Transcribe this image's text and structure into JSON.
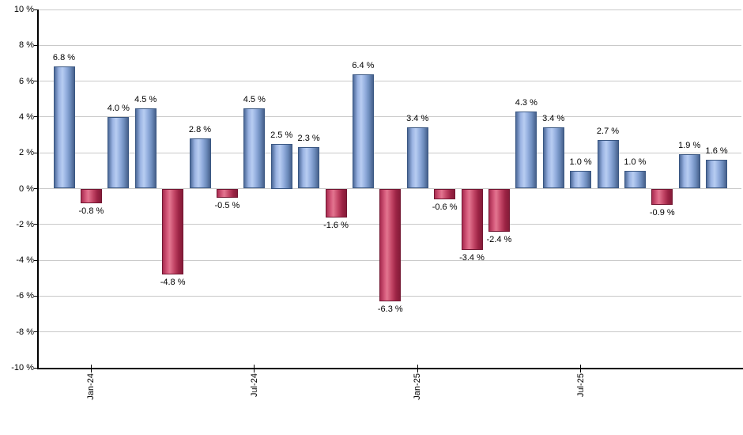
{
  "chart_data": {
    "type": "bar",
    "title": "",
    "unit": "%",
    "bars": [
      {
        "value": 6.8,
        "label": "6.8 %"
      },
      {
        "value": -0.8,
        "label": "-0.8 %"
      },
      {
        "value": 4.0,
        "label": "4.0 %"
      },
      {
        "value": 4.5,
        "label": "4.5 %"
      },
      {
        "value": -4.8,
        "label": "-4.8 %"
      },
      {
        "value": 2.8,
        "label": "2.8 %"
      },
      {
        "value": -0.5,
        "label": "-0.5 %"
      },
      {
        "value": 4.5,
        "label": "4.5 %"
      },
      {
        "value": 2.5,
        "label": "2.5 %"
      },
      {
        "value": 2.3,
        "label": "2.3 %"
      },
      {
        "value": -1.6,
        "label": "-1.6 %"
      },
      {
        "value": 6.4,
        "label": "6.4 %"
      },
      {
        "value": -6.3,
        "label": "-6.3 %"
      },
      {
        "value": 3.4,
        "label": "3.4 %"
      },
      {
        "value": -0.6,
        "label": "-0.6 %"
      },
      {
        "value": -3.4,
        "label": "-3.4 %"
      },
      {
        "value": -2.4,
        "label": "-2.4 %"
      },
      {
        "value": 4.3,
        "label": "4.3 %"
      },
      {
        "value": 3.4,
        "label": "3.4 %"
      },
      {
        "value": 1.0,
        "label": "1.0 %"
      },
      {
        "value": 2.7,
        "label": "2.7 %"
      },
      {
        "value": 1.0,
        "label": "1.0 %"
      },
      {
        "value": -0.9,
        "label": "-0.9 %"
      },
      {
        "value": 1.9,
        "label": "1.9 %"
      },
      {
        "value": 1.6,
        "label": "1.6 %"
      }
    ],
    "y_axis": {
      "min": -10,
      "max": 10,
      "step": 2,
      "grid": true,
      "tick_labels": [
        "10 %",
        "8 %",
        "6 %",
        "4 %",
        "2 %",
        "0 %",
        "-2 %",
        "-4 %",
        "-6 %",
        "-8 %",
        "-10 %"
      ]
    },
    "x_axis": {
      "ticks": [
        {
          "label": "Jan-24",
          "bar_index": 1
        },
        {
          "label": "Jul-24",
          "bar_index": 7
        },
        {
          "label": "Jan-25",
          "bar_index": 13
        },
        {
          "label": "Jul-25",
          "bar_index": 19
        }
      ]
    },
    "colors": {
      "positive_light": "#b8cdf2",
      "positive_dark": "#47618c",
      "positive_edge": "#3a5782",
      "negative_light": "#e2758f",
      "negative_dark": "#851b38",
      "negative_edge": "#731632",
      "gridline": "#c9c9c9",
      "axis": "#000000",
      "label_text": "#000000",
      "background": "#ffffff"
    },
    "legend": null
  }
}
